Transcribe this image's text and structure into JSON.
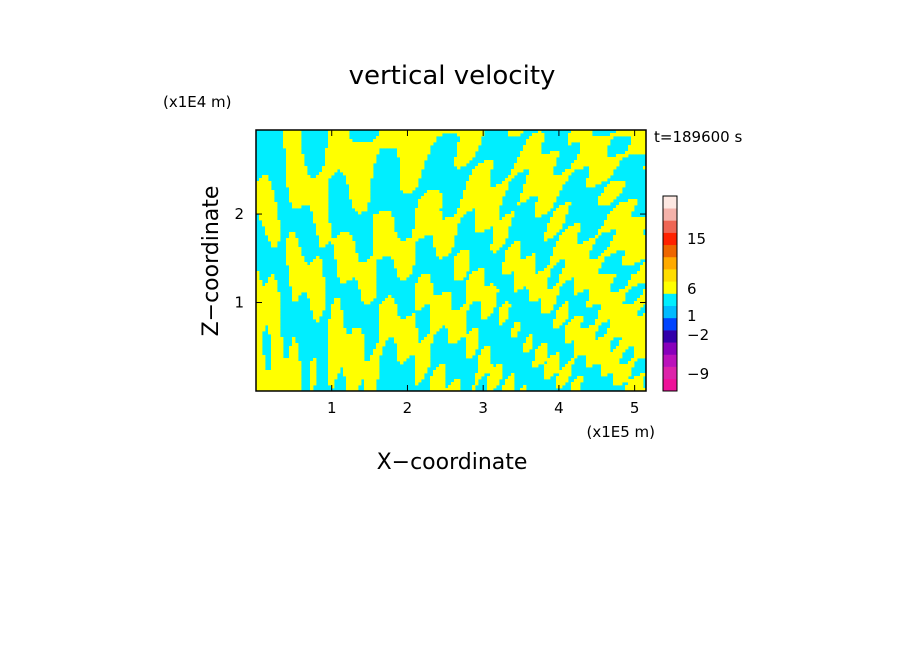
{
  "chart_data": {
    "type": "heatmap",
    "title": "vertical velocity",
    "xlabel": "X−coordinate",
    "ylabel": "Z−coordinate",
    "x_unit": "(x1E5 m)",
    "y_unit": "(x1E4 m)",
    "time_label": "t=189600 s",
    "xlim": [
      0,
      5.15
    ],
    "ylim": [
      0,
      2.95
    ],
    "x_ticks": [
      {
        "value": 1,
        "label": "1"
      },
      {
        "value": 2,
        "label": "2"
      },
      {
        "value": 3,
        "label": "3"
      },
      {
        "value": 4,
        "label": "4"
      },
      {
        "value": 5,
        "label": "5"
      }
    ],
    "y_ticks": [
      {
        "value": 1,
        "label": "1"
      },
      {
        "value": 2,
        "label": "2"
      }
    ],
    "grid": false,
    "field_colors": {
      "positive": "#ffff00",
      "negative": "#00eeff"
    },
    "colorbar": {
      "bands": [
        {
          "color": "#ee1199"
        },
        {
          "color": "#dd22aa"
        },
        {
          "color": "#bb11bb"
        },
        {
          "color": "#8800bb"
        },
        {
          "color": "#3300aa"
        },
        {
          "color": "#0044ff"
        },
        {
          "color": "#00bbff"
        },
        {
          "color": "#00eeff"
        },
        {
          "color": "#ffff00"
        },
        {
          "color": "#ffdd00"
        },
        {
          "color": "#ffaa00"
        },
        {
          "color": "#ee6600"
        },
        {
          "color": "#ff2200"
        },
        {
          "color": "#ee6655"
        },
        {
          "color": "#f4b2aa"
        },
        {
          "color": "#fde8e2"
        }
      ],
      "labels": [
        {
          "value": 15,
          "text": "15"
        },
        {
          "value": 6,
          "text": "6"
        },
        {
          "value": 1,
          "text": "1"
        },
        {
          "value": -2,
          "text": "−2"
        },
        {
          "value": -9,
          "text": "−9"
        }
      ]
    }
  }
}
